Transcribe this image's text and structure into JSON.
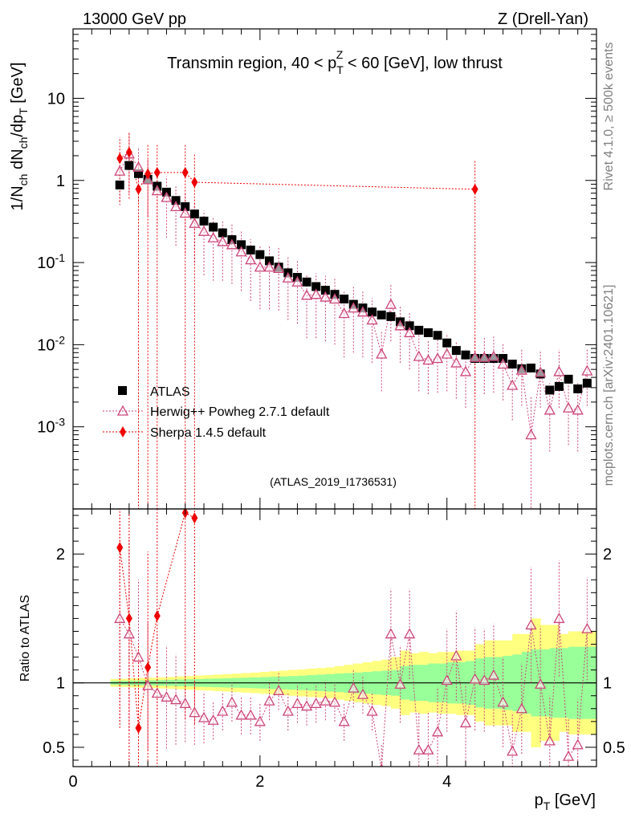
{
  "header": {
    "left": "13000 GeV pp",
    "right": "Z (Drell-Yan)"
  },
  "side_labels": {
    "rivet": "Rivet 4.1.0, ≥ 500k events",
    "mcplots": "mcplots.cern.ch [arXiv:2401.10621]"
  },
  "colors": {
    "atlas": "#000000",
    "herwig": "#cc4477",
    "sherpa": "#ee0000",
    "band_inner": "#99ff99",
    "band_outer": "#ffff80"
  },
  "chart_data": [
    {
      "type": "scatter",
      "title": "Transmin region, 40 < p_T^Z < 60 [GeV], low thrust",
      "title_parts": {
        "a": "Transmin region, 40 < p",
        "sub": "T",
        "sup": "Z",
        "b": " < 60 [GeV], low thrust"
      },
      "analysis_tag": "(ATLAS_2019_I1736531)",
      "ylabel": "1/N_ch dN_ch/dp_T [GeV]",
      "yscale": "log",
      "ylim": [
        0.0001,
        70
      ],
      "xlim": [
        0,
        5.6
      ],
      "y_ticks": [
        {
          "value": 10,
          "label": "10"
        },
        {
          "value": 1,
          "label": "1"
        },
        {
          "value": 0.1,
          "label": "10^-1"
        },
        {
          "value": 0.01,
          "label": "10^-2"
        },
        {
          "value": 0.001,
          "label": "10^-3"
        }
      ],
      "legend": [
        "ATLAS",
        "Herwig++ Powheg 2.7.1 default",
        "Sherpa 1.4.5 default"
      ],
      "series": [
        {
          "name": "ATLAS",
          "marker": "square",
          "x": [
            0.5,
            0.6,
            0.7,
            0.8,
            0.9,
            1.0,
            1.1,
            1.2,
            1.3,
            1.4,
            1.5,
            1.6,
            1.7,
            1.8,
            1.9,
            2.0,
            2.1,
            2.2,
            2.3,
            2.4,
            2.5,
            2.6,
            2.7,
            2.8,
            2.9,
            3.0,
            3.1,
            3.2,
            3.3,
            3.4,
            3.5,
            3.6,
            3.7,
            3.8,
            3.9,
            4.0,
            4.1,
            4.2,
            4.3,
            4.4,
            4.5,
            4.6,
            4.7,
            4.8,
            4.9,
            5.0,
            5.1,
            5.2,
            5.3,
            5.4,
            5.5
          ],
          "values": [
            0.88,
            1.52,
            1.21,
            1.03,
            0.85,
            0.72,
            0.57,
            0.48,
            0.39,
            0.32,
            0.27,
            0.23,
            0.19,
            0.165,
            0.142,
            0.125,
            0.105,
            0.088,
            0.075,
            0.066,
            0.058,
            0.051,
            0.046,
            0.041,
            0.036,
            0.031,
            0.028,
            0.025,
            0.023,
            0.022,
            0.019,
            0.017,
            0.015,
            0.014,
            0.013,
            0.0105,
            0.0085,
            0.0075,
            0.0068,
            0.0068,
            0.0068,
            0.0068,
            0.0058,
            0.0051,
            0.0052,
            0.0044,
            0.0028,
            0.0031,
            0.0038,
            0.0029,
            0.0034
          ]
        },
        {
          "name": "Herwig++ Powheg 2.7.1 default",
          "marker": "open-triangle",
          "x": [
            0.5,
            0.6,
            0.7,
            0.8,
            0.9,
            1.0,
            1.1,
            1.2,
            1.3,
            1.4,
            1.5,
            1.6,
            1.7,
            1.8,
            1.9,
            2.0,
            2.1,
            2.2,
            2.3,
            2.4,
            2.5,
            2.6,
            2.7,
            2.8,
            2.9,
            3.0,
            3.1,
            3.2,
            3.3,
            3.4,
            3.5,
            3.6,
            3.7,
            3.8,
            3.9,
            4.0,
            4.1,
            4.2,
            4.3,
            4.4,
            4.5,
            4.6,
            4.7,
            4.8,
            4.9,
            5.0,
            5.1,
            5.2,
            5.3,
            5.4,
            5.5
          ],
          "values": [
            1.3,
            2.1,
            1.45,
            1.02,
            0.75,
            0.62,
            0.48,
            0.4,
            0.3,
            0.24,
            0.2,
            0.18,
            0.165,
            0.135,
            0.108,
            0.088,
            0.088,
            0.085,
            0.065,
            0.058,
            0.04,
            0.041,
            0.038,
            0.036,
            0.024,
            0.028,
            0.025,
            0.02,
            0.0077,
            0.031,
            0.017,
            0.014,
            0.0072,
            0.0065,
            0.0068,
            0.0077,
            0.006,
            0.0047,
            0.007,
            0.007,
            0.0072,
            0.0058,
            0.0032,
            0.0049,
            0.0008,
            0.0046,
            0.0016,
            0.0047,
            0.0017,
            0.0016,
            0.0048
          ],
          "err_low": [
            0.8,
            1.4,
            0.9,
            0.65,
            0.5,
            0.42,
            0.32,
            0.27,
            0.2,
            0.17,
            0.14,
            0.12,
            0.11,
            0.09,
            0.074,
            0.061,
            0.061,
            0.059,
            0.045,
            0.04,
            0.028,
            0.029,
            0.027,
            0.026,
            0.017,
            0.02,
            0.018,
            0.014,
            0.005,
            0.02,
            0.011,
            0.009,
            0.0045,
            0.004,
            0.0042,
            0.005,
            0.0038,
            0.003,
            0.0045,
            0.0045,
            0.0046,
            0.0037,
            0.002,
            0.0031,
            0.00075,
            0.0029,
            0.0011,
            0.003,
            0.0011,
            0.0011,
            0.003
          ],
          "err_high": [
            1.0,
            1.6,
            1.1,
            0.8,
            0.6,
            0.5,
            0.38,
            0.32,
            0.24,
            0.19,
            0.16,
            0.14,
            0.13,
            0.11,
            0.085,
            0.07,
            0.07,
            0.068,
            0.052,
            0.046,
            0.032,
            0.033,
            0.031,
            0.029,
            0.02,
            0.023,
            0.021,
            0.017,
            0.007,
            0.024,
            0.013,
            0.011,
            0.006,
            0.005,
            0.0055,
            0.006,
            0.005,
            0.004,
            0.0055,
            0.0055,
            0.0058,
            0.0047,
            0.0028,
            0.004,
            0.0015,
            0.0038,
            0.0018,
            0.004,
            0.002,
            0.0018,
            0.004
          ]
        },
        {
          "name": "Sherpa 1.4.5 default",
          "marker": "filled-diamond",
          "x": [
            0.5,
            0.6,
            0.7,
            0.8,
            0.9,
            1.2,
            1.3,
            4.3
          ],
          "values": [
            1.85,
            2.2,
            0.78,
            1.2,
            1.25,
            1.25,
            0.95,
            0.78
          ],
          "err_low": [
            1.3,
            1.6,
            0.78,
            1.2,
            1.25,
            1.25,
            0.95,
            0.78
          ],
          "err_high": [
            1.5,
            1.7,
            1.0,
            1.5,
            1.5,
            1.5,
            1.2,
            1.0
          ]
        }
      ]
    },
    {
      "type": "line",
      "title": "",
      "ylabel": "Ratio to ATLAS",
      "xlabel": "p_T [GeV]",
      "ylim": [
        0.35,
        2.35
      ],
      "xlim": [
        0,
        5.6
      ],
      "x_ticks": [
        0,
        2,
        4
      ],
      "y_ticks": [
        0.5,
        1,
        2
      ],
      "reference_line": 1,
      "bands": {
        "x": [
          0.45,
          0.55,
          0.65,
          0.75,
          0.85,
          0.95,
          1.05,
          1.15,
          1.25,
          1.35,
          1.45,
          1.55,
          1.65,
          1.75,
          1.85,
          1.95,
          2.05,
          2.15,
          2.25,
          2.35,
          2.45,
          2.55,
          2.65,
          2.75,
          2.85,
          2.95,
          3.05,
          3.15,
          3.25,
          3.35,
          3.45,
          3.55,
          3.65,
          3.75,
          3.85,
          3.95,
          4.05,
          4.15,
          4.25,
          4.35,
          4.45,
          4.55,
          4.65,
          4.75,
          4.85,
          4.95,
          5.05,
          5.15,
          5.25,
          5.35,
          5.45,
          5.55
        ],
        "inner": [
          0.015,
          0.016,
          0.018,
          0.019,
          0.02,
          0.022,
          0.024,
          0.026,
          0.028,
          0.03,
          0.032,
          0.034,
          0.036,
          0.038,
          0.04,
          0.042,
          0.045,
          0.048,
          0.05,
          0.053,
          0.056,
          0.06,
          0.064,
          0.068,
          0.072,
          0.076,
          0.08,
          0.085,
          0.09,
          0.095,
          0.1,
          0.13,
          0.14,
          0.14,
          0.15,
          0.15,
          0.16,
          0.16,
          0.17,
          0.19,
          0.2,
          0.2,
          0.21,
          0.22,
          0.24,
          0.26,
          0.26,
          0.27,
          0.27,
          0.28,
          0.28,
          0.28
        ],
        "outer": [
          0.03,
          0.032,
          0.035,
          0.038,
          0.04,
          0.043,
          0.046,
          0.05,
          0.053,
          0.057,
          0.06,
          0.064,
          0.068,
          0.072,
          0.076,
          0.08,
          0.085,
          0.09,
          0.095,
          0.1,
          0.105,
          0.11,
          0.115,
          0.12,
          0.13,
          0.14,
          0.15,
          0.16,
          0.17,
          0.18,
          0.2,
          0.25,
          0.23,
          0.24,
          0.23,
          0.24,
          0.24,
          0.25,
          0.25,
          0.3,
          0.33,
          0.33,
          0.33,
          0.38,
          0.38,
          0.5,
          0.45,
          0.45,
          0.38,
          0.4,
          0.4,
          0.4
        ]
      },
      "series": [
        {
          "name": "Herwig++ Powheg 2.7.1 default",
          "x": [
            0.5,
            0.6,
            0.7,
            0.8,
            0.9,
            1.0,
            1.1,
            1.2,
            1.3,
            1.4,
            1.5,
            1.6,
            1.7,
            1.8,
            1.9,
            2.0,
            2.1,
            2.2,
            2.3,
            2.4,
            2.5,
            2.6,
            2.7,
            2.8,
            2.9,
            3.0,
            3.1,
            3.2,
            3.3,
            3.4,
            3.5,
            3.6,
            3.7,
            3.8,
            3.9,
            4.0,
            4.1,
            4.2,
            4.3,
            4.4,
            4.5,
            4.6,
            4.7,
            4.8,
            4.9,
            5.0,
            5.1,
            5.2,
            5.3,
            5.4,
            5.5
          ],
          "values": [
            1.5,
            1.38,
            1.2,
            0.98,
            0.92,
            0.89,
            0.87,
            0.84,
            0.77,
            0.73,
            0.71,
            0.78,
            0.85,
            0.75,
            0.75,
            0.7,
            0.86,
            0.94,
            0.78,
            0.84,
            0.82,
            0.84,
            0.86,
            0.85,
            0.7,
            0.96,
            0.91,
            0.78,
            0.33,
            1.38,
            0.99,
            1.38,
            0.48,
            0.48,
            0.62,
            1.02,
            1.21,
            0.69,
            1.03,
            1.02,
            1.06,
            0.85,
            0.47,
            0.8,
            1.45,
            0.99,
            0.55,
            1.5,
            0.43,
            0.52,
            1.42
          ],
          "err": [
            0.8,
            0.75,
            0.6,
            0.5,
            0.45,
            0.4,
            0.35,
            0.3,
            0.25,
            0.2,
            0.15,
            0.15,
            0.15,
            0.15,
            0.15,
            0.15,
            0.15,
            0.15,
            0.15,
            0.15,
            0.15,
            0.15,
            0.15,
            0.15,
            0.15,
            0.15,
            0.15,
            0.15,
            0.2,
            0.35,
            0.3,
            0.35,
            0.3,
            0.3,
            0.35,
            0.4,
            0.35,
            0.3,
            0.4,
            0.4,
            0.4,
            0.35,
            0.3,
            0.35,
            0.45,
            0.45,
            0.35,
            0.45,
            0.3,
            0.35,
            0.4
          ]
        },
        {
          "name": "Sherpa 1.4.5 default",
          "x": [
            0.5,
            0.6,
            0.7,
            0.8,
            0.9,
            1.2,
            1.3
          ],
          "values": [
            2.05,
            1.5,
            0.65,
            1.12,
            1.52,
            2.32,
            2.28
          ],
          "err": [
            1.4,
            1.2,
            0.65,
            0.9,
            1.2,
            1.6,
            1.6
          ]
        }
      ]
    }
  ]
}
